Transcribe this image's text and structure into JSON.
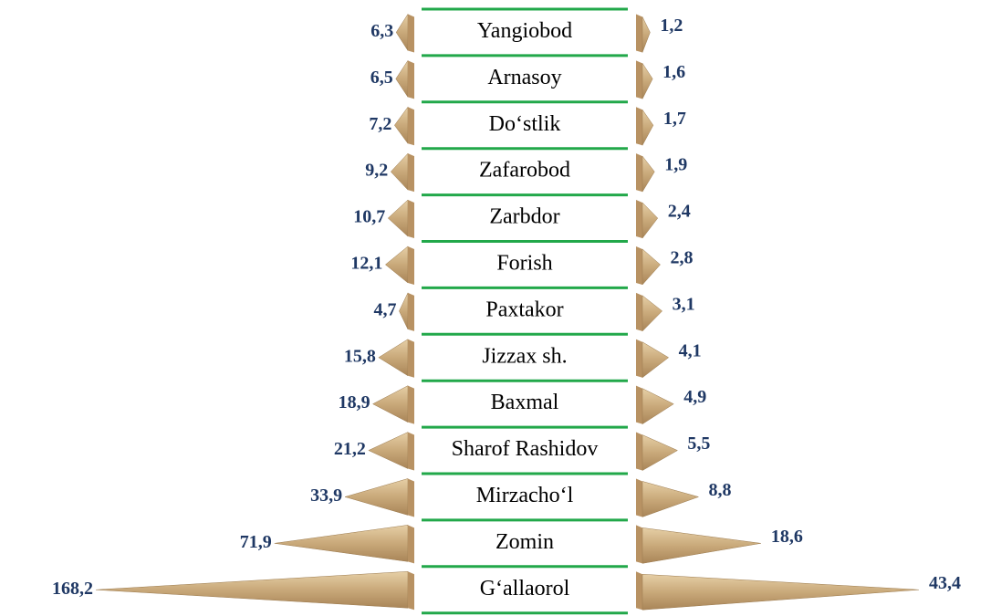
{
  "chart_data": {
    "type": "bar",
    "categories": [
      "Yangiobod",
      "Arnasoy",
      "Do‘stlik",
      "Zafarobod",
      "Zarbdor",
      "Forish",
      "Paxtakor",
      "Jizzax sh.",
      "Baxmal",
      "Sharof Rashidov",
      "Mirzacho‘l",
      "Zomin",
      "G‘allaorol"
    ],
    "series": [
      {
        "color": "#c9a97a",
        "values": [
          6.3,
          6.5,
          7.2,
          9.2,
          10.7,
          12.1,
          4.7,
          15.8,
          18.9,
          21.2,
          33.9,
          71.9,
          168.2
        ],
        "value_labels": [
          "6,3",
          "6,5",
          "7,2",
          "9,2",
          "10,7",
          "12,1",
          "4,7",
          "15,8",
          "18,9",
          "21,2",
          "33,9",
          "71,9",
          "168,2"
        ]
      },
      {
        "color": "#c9a97a",
        "values": [
          1.2,
          1.6,
          1.7,
          1.9,
          2.4,
          2.8,
          3.1,
          4.1,
          4.9,
          5.5,
          8.8,
          18.6,
          43.4
        ],
        "value_labels": [
          "1,2",
          "1,6",
          "1,7",
          "1,9",
          "2,4",
          "2,8",
          "3,1",
          "4,1",
          "4,9",
          "5,5",
          "8,8",
          "18,6",
          "43,4"
        ]
      }
    ]
  }
}
